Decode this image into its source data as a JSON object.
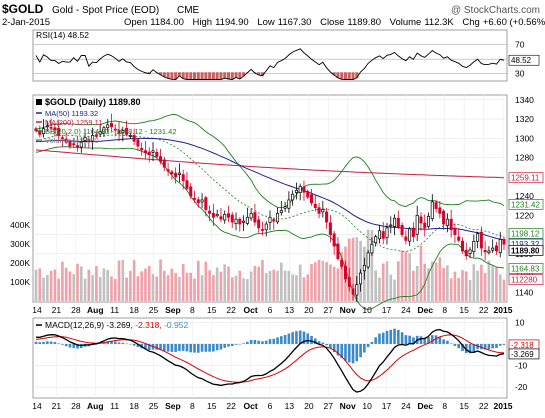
{
  "header": {
    "symbol": "$GOLD",
    "name": "Gold - Spot Price (EOD)",
    "exchange": "CME",
    "date": "2-Jan-2015",
    "open_label": "Open",
    "open": "1184.00",
    "high_label": "High",
    "high": "1194.90",
    "low_label": "Low",
    "low": "1167.30",
    "close_label": "Close",
    "close": "1189.80",
    "volume_label": "Volume",
    "volume": "112.3K",
    "chg_label": "Chg",
    "chg": "+6.60 (+0.56%)",
    "watermark": "@ StockCharts.com",
    "up_color": "#000000",
    "down_color": "#d8002a"
  },
  "rsi": {
    "label": "RSI(14) 48.52",
    "current": "48.52",
    "ticks": [
      "70",
      "50",
      "30"
    ],
    "line_color": "#000000",
    "fill_color": "#c86060"
  },
  "price": {
    "legend": {
      "main": "$GOLD (Daily) 1189.80",
      "ma50": "MA(50) 1193.32",
      "ma200": "MA(200) 1259.11",
      "bb": "BB(20,2.0) 1164.83 - 1198.12 - 1231.42",
      "volume": "Volume 112,280"
    },
    "colors": {
      "ma50": "#202090",
      "ma200": "#c02040",
      "bb": "#208020",
      "vol_up": "#c0c0c0",
      "vol_down": "#f0a0a8"
    },
    "ticks": [
      "1340",
      "1320",
      "1300",
      "1280",
      "1260",
      "1240",
      "1220",
      "1200",
      "1180",
      "1160",
      "1140",
      "1120"
    ],
    "vol_ticks": [
      "400K",
      "300K",
      "200K",
      "100K"
    ],
    "badges": [
      {
        "text": "1259.11",
        "color": "#c02040"
      },
      {
        "text": "1231.42",
        "color": "#208020"
      },
      {
        "text": "1198.12",
        "color": "#208020"
      },
      {
        "text": "1193.32",
        "color": "#202090"
      },
      {
        "text": "1189.80",
        "color": "#000000"
      },
      {
        "text": "1164.83",
        "color": "#208020"
      },
      {
        "text": "112280",
        "color": "#c02040"
      }
    ]
  },
  "macd": {
    "label": "MACD(12,26,9)",
    "v1": "-3.269",
    "v2": "-2.318",
    "v3": "-0.952",
    "ticks": [
      "10",
      "0",
      "-10",
      "-20"
    ],
    "badges": [
      {
        "text": "-2.318",
        "color": "#d00000"
      },
      {
        "text": "-3.269",
        "color": "#000000"
      }
    ],
    "colors": {
      "macd": "#000000",
      "signal": "#e00000",
      "hist": "#3a8ac8"
    }
  },
  "xaxis": {
    "labels": [
      "14",
      "21",
      "28",
      "Aug",
      "11",
      "18",
      "25",
      "Sep",
      "8",
      "15",
      "22",
      "Oct",
      "6",
      "13",
      "20",
      "27",
      "Nov",
      "10",
      "17",
      "24",
      "Dec",
      "8",
      "15",
      "22",
      "2015"
    ],
    "bold": [
      "Aug",
      "Sep",
      "Oct",
      "Nov",
      "Dec",
      "2015"
    ]
  },
  "chart_data": {
    "type": "candlestick",
    "instrument": "$GOLD",
    "period": "Daily",
    "date_range": [
      "2014-07-14",
      "2015-01-02"
    ],
    "ohlc_last": {
      "open": 1184.0,
      "high": 1194.9,
      "low": 1167.3,
      "close": 1189.8
    },
    "volume_last": 112280,
    "y_range": [
      1130,
      1345
    ],
    "close_series": [
      1308,
      1304,
      1310,
      1313,
      1311,
      1309,
      1303,
      1300,
      1296,
      1292,
      1294,
      1291,
      1296,
      1301,
      1298,
      1303,
      1302,
      1307,
      1311,
      1314,
      1312,
      1309,
      1305,
      1308,
      1304,
      1303,
      1297,
      1292,
      1288,
      1285,
      1283,
      1287,
      1281,
      1276,
      1270,
      1266,
      1263,
      1260,
      1264,
      1256,
      1248,
      1240,
      1237,
      1233,
      1236,
      1226,
      1222,
      1218,
      1221,
      1216,
      1221,
      1218,
      1213,
      1216,
      1211,
      1214,
      1218,
      1222,
      1213,
      1207,
      1205,
      1211,
      1218,
      1214,
      1222,
      1225,
      1229,
      1236,
      1242,
      1246,
      1250,
      1244,
      1239,
      1233,
      1228,
      1222,
      1226,
      1213,
      1200,
      1188,
      1175,
      1167,
      1154,
      1146,
      1138,
      1148,
      1160,
      1168,
      1181,
      1190,
      1198,
      1204,
      1196,
      1207,
      1210,
      1217,
      1208,
      1200,
      1194,
      1206,
      1198,
      1220,
      1212,
      1207,
      1219,
      1234,
      1227,
      1222,
      1211,
      1216,
      1205,
      1200,
      1194,
      1183,
      1178,
      1184,
      1193,
      1201,
      1186,
      1182,
      1183,
      1186,
      1183,
      1195,
      1190
    ],
    "ma50_end": 1193.32,
    "ma200_end": 1259.11,
    "bollinger": {
      "period": 20,
      "stdev": 2.0,
      "lower": 1164.83,
      "middle": 1198.12,
      "upper": 1231.42
    },
    "volume_range": [
      0,
      400000
    ],
    "rsi": {
      "period": 14,
      "current": 48.52,
      "levels": [
        30,
        50,
        70
      ]
    },
    "macd": {
      "fast": 12,
      "slow": 26,
      "signal": 9,
      "macd": -3.269,
      "signal_value": -2.318,
      "histogram": -0.952,
      "y_range": [
        -25,
        12
      ]
    }
  }
}
